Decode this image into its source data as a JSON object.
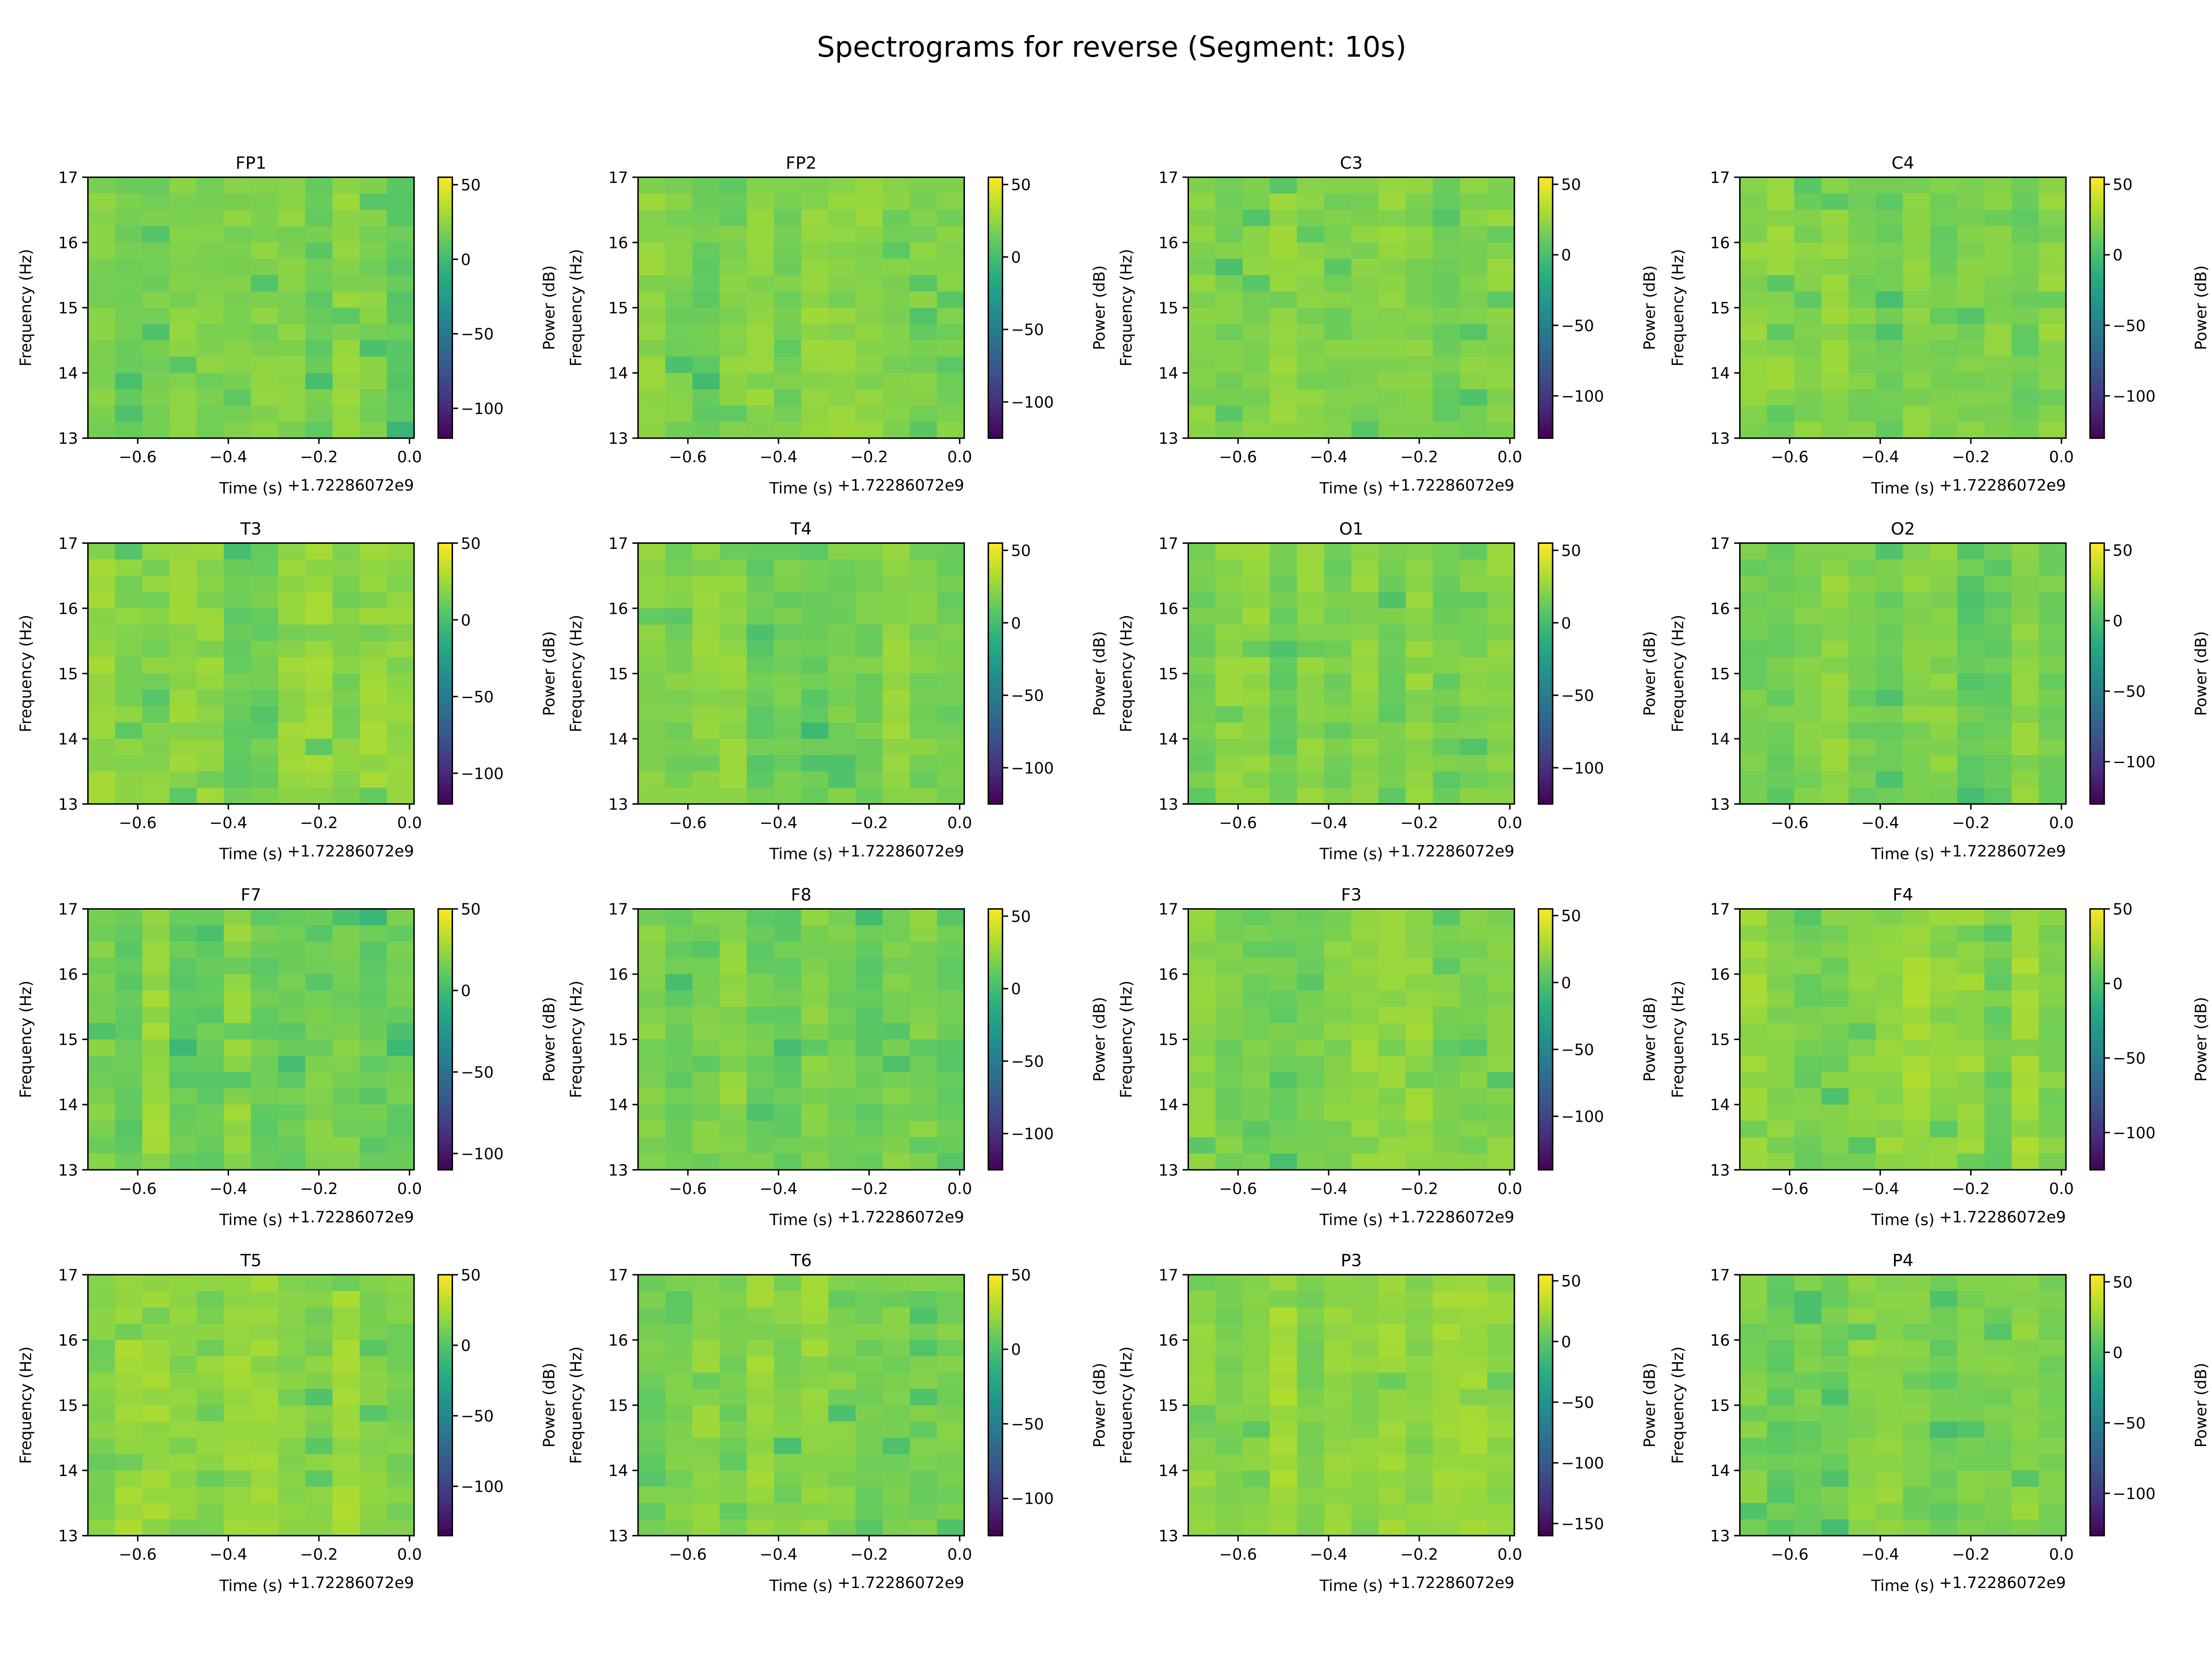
{
  "chart_data": {
    "type": "heatmap",
    "title": "Spectrograms for reverse (Segment: 10s)",
    "colormap": "viridis",
    "xlabel": "Time (s)",
    "x_offset_text": "+1.72286072e9",
    "ylabel": "Frequency (Hz)",
    "colorbar_label": "Power (dB)",
    "xlim": [
      -0.71,
      0.01
    ],
    "ylim": [
      13,
      17
    ],
    "xticks": [
      "-0.6",
      "-0.4",
      "-0.2",
      "0.0"
    ],
    "yticks": [
      "13",
      "14",
      "15",
      "16",
      "17"
    ],
    "panels": [
      {
        "name": "FP1",
        "clim": [
          -120,
          55
        ],
        "cticks": [
          50,
          0,
          -50,
          -100
        ]
      },
      {
        "name": "FP2",
        "clim": [
          -125,
          55
        ],
        "cticks": [
          50,
          0,
          -50,
          -100
        ]
      },
      {
        "name": "C3",
        "clim": [
          -130,
          55
        ],
        "cticks": [
          50,
          0,
          -50,
          -100
        ]
      },
      {
        "name": "C4",
        "clim": [
          -130,
          55
        ],
        "cticks": [
          50,
          0,
          -50,
          -100
        ]
      },
      {
        "name": "T3",
        "clim": [
          -120,
          50
        ],
        "cticks": [
          50,
          0,
          -50,
          -100
        ]
      },
      {
        "name": "T4",
        "clim": [
          -125,
          55
        ],
        "cticks": [
          50,
          0,
          -50,
          -100
        ]
      },
      {
        "name": "O1",
        "clim": [
          -125,
          55
        ],
        "cticks": [
          50,
          0,
          -50,
          -100
        ]
      },
      {
        "name": "O2",
        "clim": [
          -130,
          55
        ],
        "cticks": [
          50,
          0,
          -50,
          -100
        ]
      },
      {
        "name": "F7",
        "clim": [
          -110,
          50
        ],
        "cticks": [
          50,
          0,
          -50,
          -100
        ]
      },
      {
        "name": "F8",
        "clim": [
          -125,
          55
        ],
        "cticks": [
          50,
          0,
          -50,
          -100
        ]
      },
      {
        "name": "F3",
        "clim": [
          -140,
          55
        ],
        "cticks": [
          50,
          0,
          -50,
          -100
        ]
      },
      {
        "name": "F4",
        "clim": [
          -125,
          50
        ],
        "cticks": [
          50,
          0,
          -50,
          -100
        ]
      },
      {
        "name": "T5",
        "clim": [
          -135,
          50
        ],
        "cticks": [
          50,
          0,
          -50,
          -100
        ]
      },
      {
        "name": "T6",
        "clim": [
          -125,
          50
        ],
        "cticks": [
          50,
          0,
          -50,
          -100
        ]
      },
      {
        "name": "P3",
        "clim": [
          -160,
          55
        ],
        "cticks": [
          50,
          0,
          -50,
          -100,
          -150
        ]
      },
      {
        "name": "P4",
        "clim": [
          -130,
          55
        ],
        "cticks": [
          50,
          0,
          -50,
          -100
        ]
      }
    ]
  }
}
